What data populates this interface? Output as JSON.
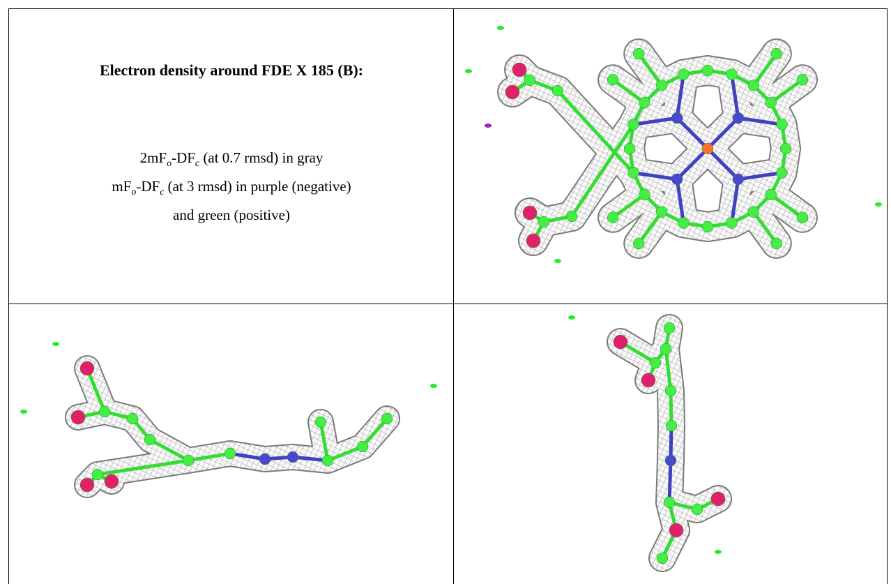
{
  "title": "Electron density around FDE X 185 (B):",
  "legend": {
    "lines": [
      [
        "2mF",
        "o",
        "-DF",
        "c",
        " (at 0.7 rmsd) in gray"
      ],
      [
        "mF",
        "o",
        "-DF",
        "c",
        " (at 3 rmsd) in purple (negative)"
      ],
      [
        "and green (positive)"
      ]
    ]
  }
}
